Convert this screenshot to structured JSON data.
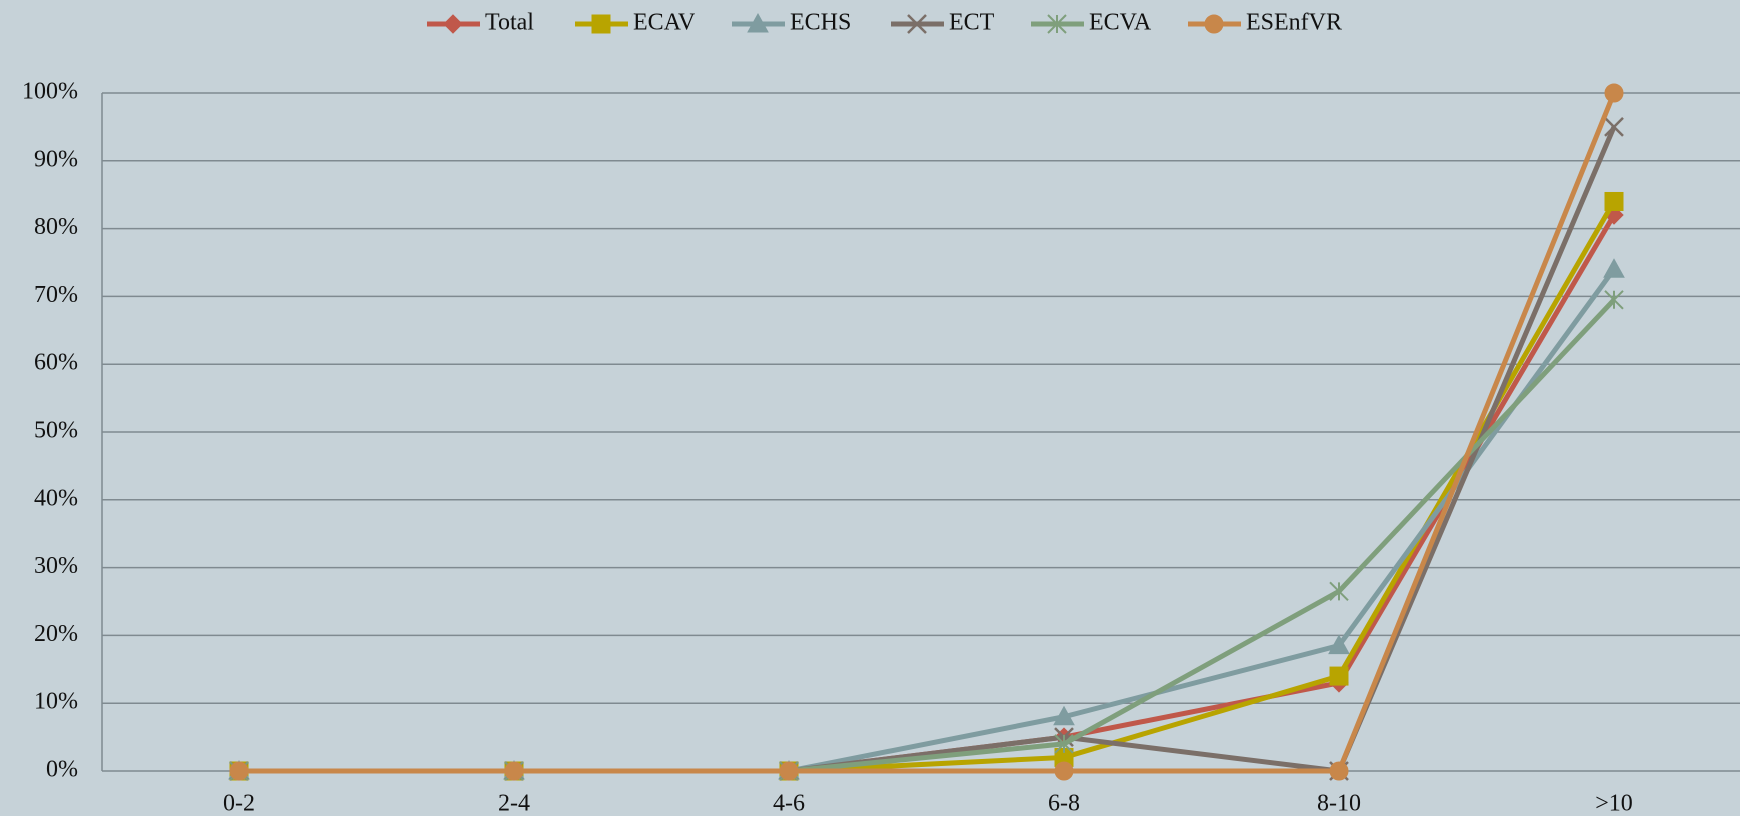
{
  "chart_data": {
    "type": "line",
    "categories": [
      "0-2",
      "2-4",
      "4-6",
      "6-8",
      "8-10",
      ">10"
    ],
    "series": [
      {
        "name": "Total",
        "color": "#c0584a",
        "marker": "diamond",
        "values": [
          0,
          0,
          0,
          5,
          13,
          82
        ]
      },
      {
        "name": "ECAV",
        "color": "#b8a400",
        "marker": "square",
        "values": [
          0,
          0,
          0,
          2,
          14,
          84
        ]
      },
      {
        "name": "ECHS",
        "color": "#7f9ca0",
        "marker": "triangle",
        "values": [
          0,
          0,
          0,
          8,
          18.5,
          74
        ]
      },
      {
        "name": "ECT",
        "color": "#7b6f68",
        "marker": "x",
        "values": [
          0,
          0,
          0,
          5,
          0,
          95
        ]
      },
      {
        "name": "ECVA",
        "color": "#7f9f7c",
        "marker": "star",
        "values": [
          0,
          0,
          0,
          4,
          26.5,
          69.5
        ]
      },
      {
        "name": "ESEnfVR",
        "color": "#c8874a",
        "marker": "circle",
        "values": [
          0,
          0,
          0,
          0,
          0,
          100
        ]
      }
    ],
    "ylim": [
      0,
      100
    ],
    "yticks": [
      {
        "value": 0,
        "label": "0%"
      },
      {
        "value": 10,
        "label": "10%"
      },
      {
        "value": 20,
        "label": "20%"
      },
      {
        "value": 30,
        "label": "30%"
      },
      {
        "value": 40,
        "label": "40%"
      },
      {
        "value": 50,
        "label": "50%"
      },
      {
        "value": 60,
        "label": "60%"
      },
      {
        "value": 70,
        "label": "70%"
      },
      {
        "value": 80,
        "label": "80%"
      },
      {
        "value": 90,
        "label": "90%"
      },
      {
        "value": 100,
        "label": "100%"
      }
    ],
    "grid": true,
    "legend": "top"
  }
}
